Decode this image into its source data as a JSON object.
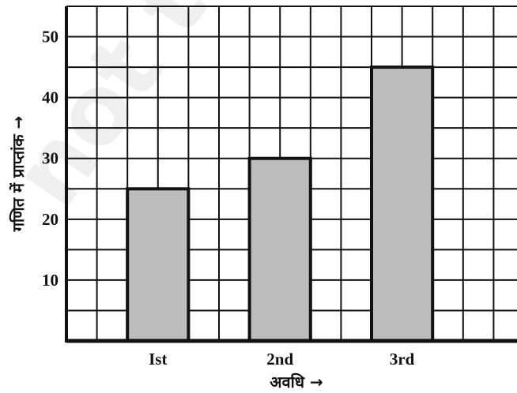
{
  "chart_data": {
    "type": "bar",
    "categories": [
      "Ist",
      "2nd",
      "3rd"
    ],
    "values": [
      25,
      30,
      45
    ],
    "title": "",
    "xlabel": "अवधि →",
    "ylabel": "गणित में प्राप्तांक →",
    "ylim": [
      0,
      55
    ],
    "yticks": [
      10,
      20,
      30,
      40,
      50
    ],
    "grid": true,
    "bar_color": "#bdbdbd",
    "watermark": "not to"
  }
}
